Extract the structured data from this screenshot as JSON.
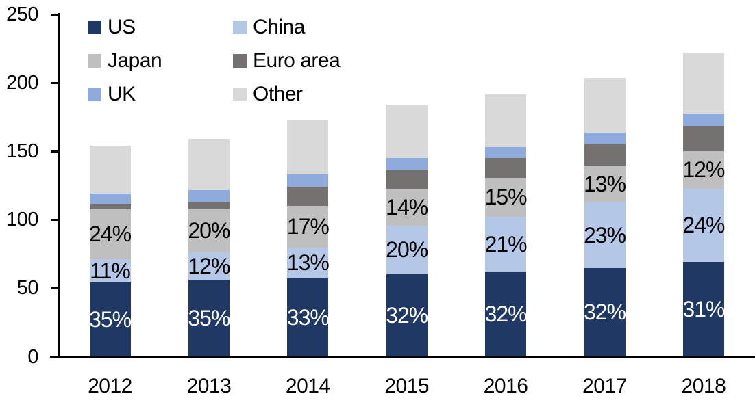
{
  "chart_data": {
    "type": "bar",
    "stacked": true,
    "title": "",
    "background_color": "#FFFFFF",
    "axis_color": "#000000",
    "grid": false,
    "legend_position": "top-left",
    "categories": [
      "2012",
      "2013",
      "2014",
      "2015",
      "2016",
      "2017",
      "2018"
    ],
    "ylim": [
      0,
      250
    ],
    "yticks": [
      0,
      50,
      100,
      150,
      200,
      250
    ],
    "approx_totals": [
      154,
      159,
      173,
      184,
      192,
      204,
      222
    ],
    "series": [
      {
        "name": "US",
        "color": "#1F3864",
        "values": [
          54,
          56,
          57,
          60,
          61.5,
          64.5,
          69
        ],
        "segment_labels": [
          "35%",
          "35%",
          "33%",
          "32%",
          "32%",
          "32%",
          "31%"
        ],
        "label_color": "#FFFFFF"
      },
      {
        "name": "China",
        "color": "#B4C7E7",
        "values": [
          17,
          20,
          22.5,
          35.5,
          40.5,
          48,
          53.5
        ],
        "segment_labels": [
          "11%",
          "12%",
          "13%",
          "20%",
          "21%",
          "23%",
          "24%"
        ],
        "label_color": "#000000"
      },
      {
        "name": "Japan",
        "color": "#BFBFBF",
        "values": [
          36.5,
          32,
          30.5,
          27,
          28.5,
          27,
          27.5
        ],
        "segment_labels": [
          "24%",
          "20%",
          "17%",
          "14%",
          "15%",
          "13%",
          "12%"
        ],
        "label_color": "#000000"
      },
      {
        "name": "Euro area",
        "color": "#767171",
        "values": [
          4,
          4.5,
          14,
          13.5,
          14.5,
          15.5,
          18.5
        ],
        "segment_labels": null,
        "label_color": null
      },
      {
        "name": "UK",
        "color": "#8FAADC",
        "values": [
          7.5,
          9,
          9,
          9,
          8,
          8.5,
          9
        ],
        "segment_labels": null,
        "label_color": null
      },
      {
        "name": "Other",
        "color": "#D9D9D9",
        "values": [
          35,
          37.5,
          39.5,
          39,
          38.5,
          40,
          44.5
        ],
        "segment_labels": null,
        "label_color": null
      }
    ]
  }
}
